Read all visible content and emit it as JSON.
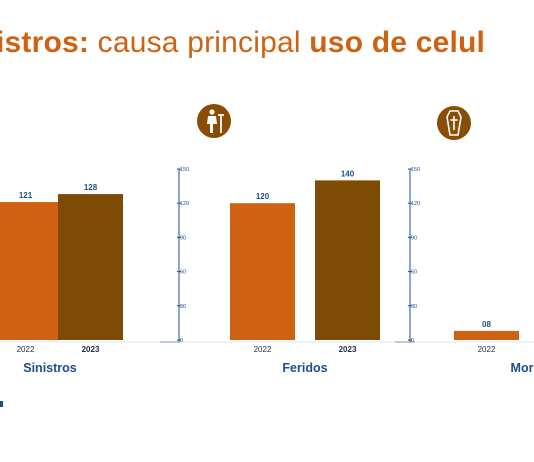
{
  "title": {
    "part1": "istros:",
    "part2": " causa principal ",
    "part3": "uso de celul"
  },
  "colors": {
    "accent": "#cf6112",
    "dark": "#7e4b04",
    "axis": "#1d4e8f",
    "icon_bg": "#8a4d05"
  },
  "chart_data": [
    {
      "type": "bar",
      "title": "Sinistros",
      "categories": [
        "2022",
        "2023"
      ],
      "values": [
        121,
        128
      ],
      "value_labels": [
        "121",
        "128"
      ],
      "ylim": [
        0,
        150
      ],
      "yticks": []
    },
    {
      "type": "bar",
      "title": "Feridos",
      "categories": [
        "2022",
        "2023"
      ],
      "values": [
        120,
        140
      ],
      "value_labels": [
        "120",
        "140"
      ],
      "ylim": [
        0,
        150
      ],
      "yticks": [
        "0",
        "30",
        "60",
        "90",
        "120",
        "150"
      ],
      "icon": "injured-person-crutch-icon"
    },
    {
      "type": "bar",
      "title": "Mor",
      "categories": [
        "2022"
      ],
      "values": [
        8
      ],
      "value_labels": [
        "08"
      ],
      "ylim": [
        0,
        150
      ],
      "yticks": [
        "0",
        "30",
        "60",
        "90",
        "120",
        "150"
      ],
      "icon": "coffin-cross-icon"
    }
  ]
}
